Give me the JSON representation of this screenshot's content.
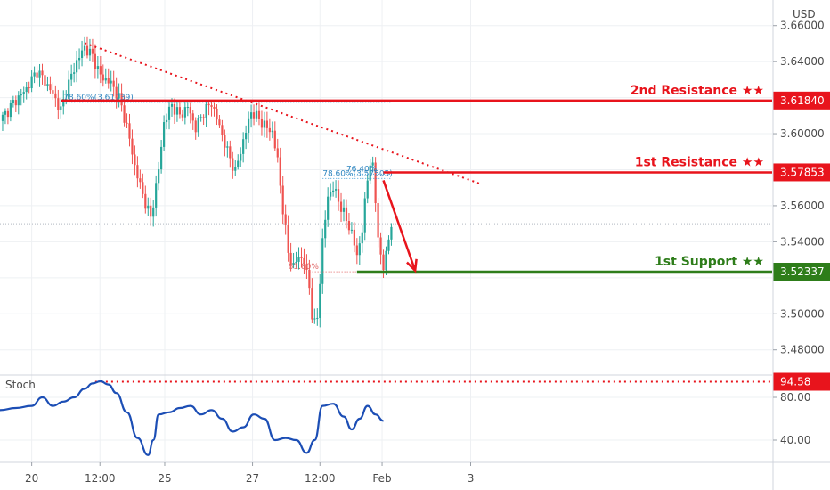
{
  "chart_data": {
    "type": "candlestick",
    "currency": "USD",
    "y_axis": {
      "ticks": [
        3.48,
        3.5,
        3.52,
        3.54,
        3.56,
        3.58,
        3.6,
        3.62,
        3.64,
        3.66
      ],
      "tick_labels": [
        "3.48000",
        "3.50000",
        "",
        "3.54000",
        "3.56000",
        "",
        "3.60000",
        "",
        "3.64000",
        "3.66000"
      ],
      "range": [
        3.4665,
        3.6742
      ]
    },
    "x_axis": {
      "range": [
        -1.2,
        28
      ],
      "ticks": [
        {
          "x": 0,
          "label": "20"
        },
        {
          "x": 2.58,
          "label": "12:00"
        },
        {
          "x": 5.03,
          "label": "25"
        },
        {
          "x": 8.35,
          "label": "27"
        },
        {
          "x": 10.9,
          "label": "12:00"
        },
        {
          "x": 13.25,
          "label": "Feb"
        },
        {
          "x": 16.6,
          "label": "3"
        }
      ]
    },
    "levels": [
      {
        "name": "2nd Resistance ★★",
        "value": 3.6184,
        "badge": "3.61840",
        "color": "#e8141c"
      },
      {
        "name": "1st Resistance ★★",
        "value": 3.57853,
        "badge": "3.57853",
        "color": "#e8141c"
      },
      {
        "name": "1st Support ★★",
        "value": 3.52337,
        "badge": "3.52337",
        "color": "#2e7d1a"
      }
    ],
    "fib_labels": [
      {
        "text": "78.60%(3.61739)",
        "x": 1.2,
        "y": 3.6174
      },
      {
        "text": "78.60%(3.57505)",
        "x": 11.0,
        "y": 3.5751
      },
      {
        "text": "76.40%",
        "x": 11.9,
        "y": 3.5776
      },
      {
        "text": "61.80%",
        "x": 9.7,
        "y": 3.5233
      }
    ],
    "trendline": {
      "x": [
        2.0,
        17.0
      ],
      "y": [
        3.6503,
        3.572
      ]
    },
    "projection_arrow": {
      "from": {
        "x": 13.3,
        "y": 3.5741
      },
      "to": {
        "x": 14.5,
        "y": 3.524
      }
    },
    "last_price": 3.55,
    "stochastic": {
      "name": "Stoch",
      "ticks": [
        40.0,
        80.0
      ],
      "tick_labels": [
        "40.00",
        "80.00"
      ],
      "range": [
        20,
        100
      ],
      "overbought_level": 94.58,
      "overbought_label": "94.58",
      "x": [
        -1.2,
        -0.6,
        0,
        0.4,
        0.8,
        1.2,
        1.6,
        2.0,
        2.3,
        2.6,
        2.9,
        3.2,
        3.6,
        4.0,
        4.4,
        4.6,
        4.8,
        5.2,
        5.6,
        6.0,
        6.4,
        6.8,
        7.2,
        7.6,
        8.0,
        8.4,
        8.8,
        9.2,
        9.6,
        10.0,
        10.4,
        10.7,
        11.0,
        11.4,
        11.8,
        12.1,
        12.4,
        12.7,
        13.0,
        13.3
      ],
      "values": [
        68,
        70,
        72,
        80,
        72,
        76,
        80,
        88,
        93,
        95,
        92,
        84,
        66,
        42,
        26,
        40,
        64,
        66,
        70,
        72,
        64,
        68,
        60,
        48,
        52,
        64,
        60,
        40,
        42,
        40,
        28,
        40,
        72,
        74,
        62,
        50,
        60,
        72,
        64,
        58
      ]
    }
  }
}
